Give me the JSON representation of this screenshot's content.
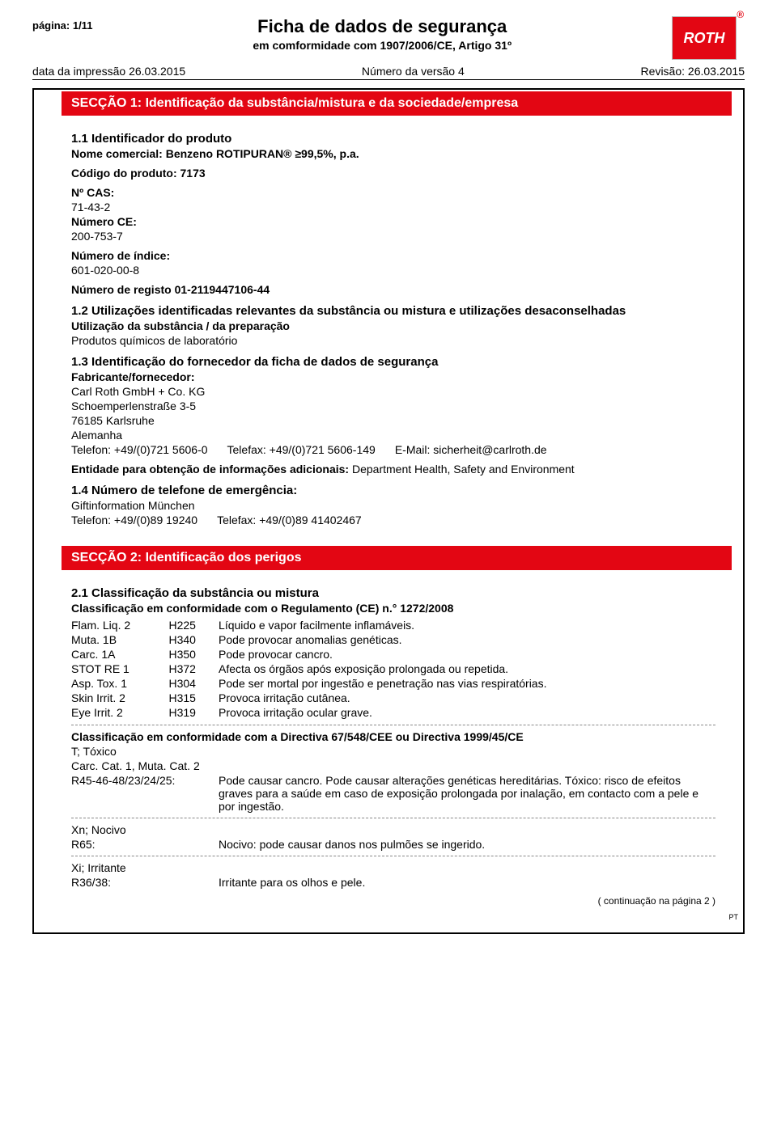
{
  "header": {
    "page_label": "página: 1/11",
    "title": "Ficha de dados de segurança",
    "subtitle": "em comformidade com 1907/2006/CE, Artigo 31º",
    "print_date": "data da impressão 26.03.2015",
    "version": "Número da versão 4",
    "revision": "Revisão: 26.03.2015",
    "logo_text": "ROTH",
    "logo_color": "#e30613"
  },
  "section1": {
    "bar_title": "SECÇÃO 1: Identificação da substância/mistura e da sociedade/empresa",
    "h_1_1": "1.1 Identificador do produto",
    "trade_name_label": "Nome comercial: Benzeno ROTIPURAN® ≥99,5%, p.a.",
    "product_code": "Código do produto: 7173",
    "cas_label": "Nº CAS:",
    "cas": "71-43-2",
    "ec_label": "Número CE:",
    "ec": "200-753-7",
    "index_label": "Número de índice:",
    "index": "601-020-00-8",
    "reg_label": "Número de registo 01-2119447106-44",
    "h_1_2": "1.2 Utilizações identificadas relevantes da substância ou mistura e utilizações desaconselhadas",
    "use_label": "Utilização da substância / da preparação",
    "use_text": "Produtos químicos de laboratório",
    "h_1_3": "1.3 Identificação do fornecedor da ficha de dados de segurança",
    "supplier_label": "Fabricante/fornecedor:",
    "supplier_name": "Carl Roth GmbH + Co. KG",
    "supplier_addr1": "Schoemperlenstraße 3-5",
    "supplier_addr2": "76185 Karlsruhe",
    "supplier_country": "Alemanha",
    "supplier_tel": "Telefon: +49/(0)721 5606-0",
    "supplier_fax": "Telefax: +49/(0)721 5606-149",
    "supplier_email": "E-Mail: sicherheit@carlroth.de",
    "info_label": "Entidade para obtenção de informações adicionais:",
    "info_dept": "Department Health, Safety and Environment",
    "h_1_4": "1.4 Número de telefone de emergência:",
    "emerg_name": "Giftinformation München",
    "emerg_tel": "Telefon: +49/(0)89 19240",
    "emerg_fax": "Telefax: +49/(0)89 41402467"
  },
  "section2": {
    "bar_title": "SECÇÃO 2: Identificação dos perigos",
    "h_2_1": "2.1 Classificação da substância ou mistura",
    "clp_label": "Classificação em conformidade com o Regulamento (CE) n.° 1272/2008",
    "clp_rows": [
      {
        "cat": "Flam. Liq. 2",
        "code": "H225",
        "desc": "Líquido e vapor facilmente inflamáveis."
      },
      {
        "cat": "Muta. 1B",
        "code": "H340",
        "desc": "Pode provocar anomalias genéticas."
      },
      {
        "cat": "Carc. 1A",
        "code": "H350",
        "desc": "Pode provocar cancro."
      },
      {
        "cat": "STOT RE 1",
        "code": "H372",
        "desc": "Afecta os órgãos após exposição prolongada ou repetida."
      },
      {
        "cat": "Asp. Tox. 1",
        "code": "H304",
        "desc": "Pode ser mortal por ingestão e penetração nas vias respiratórias."
      },
      {
        "cat": "Skin Irrit. 2",
        "code": "H315",
        "desc": "Provoca irritação cutânea."
      },
      {
        "cat": "Eye Irrit. 2",
        "code": "H319",
        "desc": "Provoca irritação ocular grave."
      }
    ],
    "dsd_label": "Classificação em conformidade com a Directiva 67/548/CEE ou Directiva 1999/45/CE",
    "dsd_t": "T; Tóxico",
    "dsd_carc": "Carc. Cat. 1, Muta. Cat. 2",
    "r_rows": [
      {
        "label": "R45-46-48/23/24/25:",
        "text": "Pode causar cancro. Pode causar alterações genéticas hereditárias. Tóxico: risco de efeitos graves para a saúde em caso de exposição prolongada por inalação, em contacto com a pele e por ingestão."
      }
    ],
    "dsd_xn": "Xn; Nocivo",
    "r65_label": "R65:",
    "r65_text": "Nocivo: pode causar danos nos pulmões se ingerido.",
    "dsd_xi": "Xi; Irritante",
    "r36_label": "R36/38:",
    "r36_text": "Irritante para os olhos e pele.",
    "cont_note": "( continuação na página 2 )",
    "pt": "PT"
  }
}
